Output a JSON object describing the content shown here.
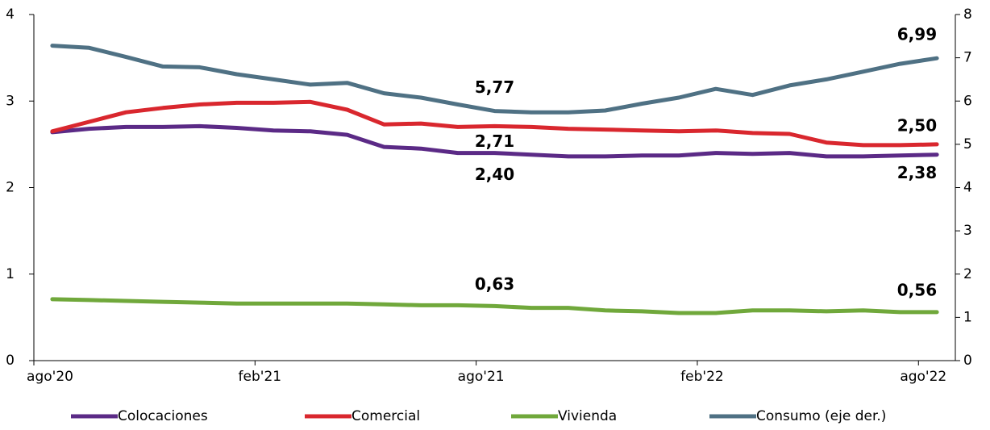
{
  "chart_data": {
    "type": "line",
    "categories": [
      "ago'20",
      null,
      null,
      null,
      null,
      null,
      "feb'21",
      null,
      null,
      null,
      null,
      null,
      "ago'21",
      null,
      null,
      null,
      null,
      null,
      "feb'22",
      null,
      null,
      null,
      null,
      null,
      "ago'22"
    ],
    "ylim": [
      0,
      4
    ],
    "yticks": [
      0,
      1,
      2,
      3,
      4
    ],
    "y2lim": [
      0,
      8
    ],
    "y2ticks": [
      0,
      1,
      2,
      3,
      4,
      5,
      6,
      7,
      8
    ],
    "series": [
      {
        "name": "Colocaciones",
        "color": "#5b2a86",
        "values": [
          2.64,
          2.68,
          2.7,
          2.7,
          2.71,
          2.69,
          2.66,
          2.65,
          2.61,
          2.47,
          2.45,
          2.4,
          2.4,
          2.38,
          2.36,
          2.36,
          2.37,
          2.37,
          2.4,
          2.39,
          2.4,
          2.36,
          2.36,
          2.37,
          2.38
        ],
        "value_labels": [
          null,
          null,
          null,
          null,
          null,
          null,
          null,
          null,
          null,
          null,
          null,
          null,
          "2,40",
          null,
          null,
          null,
          null,
          null,
          null,
          null,
          null,
          null,
          null,
          null,
          "2,38"
        ]
      },
      {
        "name": "Comercial",
        "color": "#d9272e",
        "values": [
          2.65,
          2.76,
          2.87,
          2.92,
          2.96,
          2.98,
          2.98,
          2.99,
          2.9,
          2.73,
          2.74,
          2.7,
          2.71,
          2.7,
          2.68,
          2.67,
          2.66,
          2.65,
          2.66,
          2.63,
          2.62,
          2.52,
          2.49,
          2.49,
          2.5
        ],
        "value_labels": [
          null,
          null,
          null,
          null,
          null,
          null,
          null,
          null,
          null,
          null,
          null,
          null,
          "2,71",
          null,
          null,
          null,
          null,
          null,
          null,
          null,
          null,
          null,
          null,
          null,
          "2,50"
        ]
      },
      {
        "name": "Vivienda",
        "color": "#70a83b",
        "values": [
          0.71,
          0.7,
          0.69,
          0.68,
          0.67,
          0.66,
          0.66,
          0.66,
          0.66,
          0.65,
          0.64,
          0.64,
          0.63,
          0.61,
          0.61,
          0.58,
          0.57,
          0.55,
          0.55,
          0.58,
          0.58,
          0.57,
          0.58,
          0.56,
          0.56
        ],
        "value_labels": [
          null,
          null,
          null,
          null,
          null,
          null,
          null,
          null,
          null,
          null,
          null,
          null,
          "0,63",
          null,
          null,
          null,
          null,
          null,
          null,
          null,
          null,
          null,
          null,
          null,
          "0,56"
        ]
      },
      {
        "name": "Consumo (eje der.)",
        "color": "#4f7184",
        "axis": "y2",
        "values": [
          7.28,
          7.23,
          7.02,
          6.8,
          6.78,
          6.62,
          6.5,
          6.38,
          6.42,
          6.18,
          6.08,
          5.92,
          5.77,
          5.74,
          5.74,
          5.78,
          5.94,
          6.08,
          6.28,
          6.14,
          6.36,
          6.5,
          6.68,
          6.86,
          6.99
        ],
        "value_labels": [
          null,
          null,
          null,
          null,
          null,
          null,
          null,
          null,
          null,
          null,
          null,
          null,
          "5,77",
          null,
          null,
          null,
          null,
          null,
          null,
          null,
          null,
          null,
          null,
          null,
          "6,99"
        ]
      }
    ]
  }
}
